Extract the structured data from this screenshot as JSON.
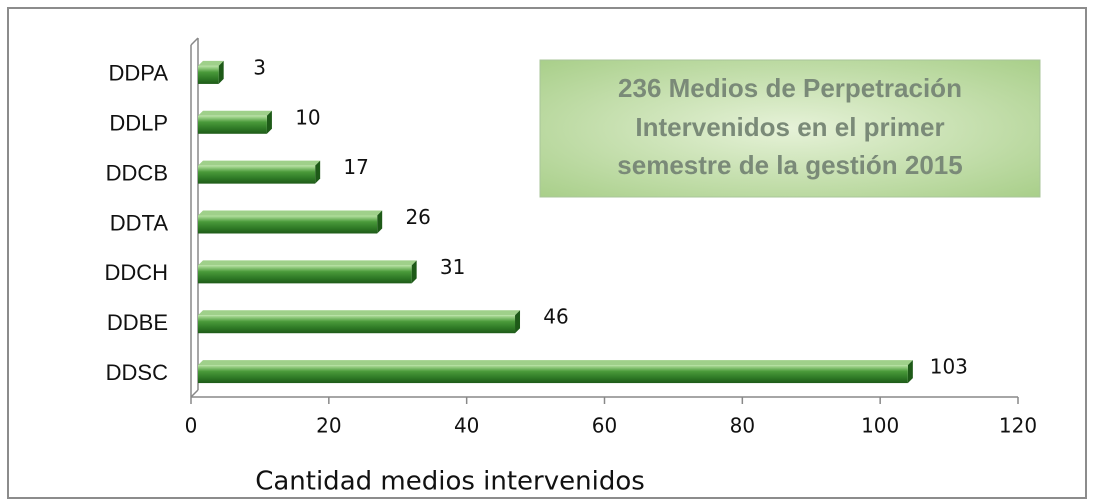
{
  "chart_data": {
    "type": "bar",
    "orientation": "horizontal",
    "categories": [
      "DDPA",
      "DDLP",
      "DDCB",
      "DDTA",
      "DDCH",
      "DDBE",
      "DDSC"
    ],
    "values": [
      3,
      10,
      17,
      26,
      31,
      46,
      103
    ],
    "color": "#3a8a2e",
    "xlabel": "Cantidad medios intervenidos",
    "annotation": [
      "236  Medios de Perpetración",
      "Intervenidos en el primer",
      "semestre de la gestión 2015"
    ],
    "xlim": [
      0,
      120
    ],
    "xticks": [
      0,
      20,
      40,
      60,
      80,
      100,
      120
    ]
  }
}
